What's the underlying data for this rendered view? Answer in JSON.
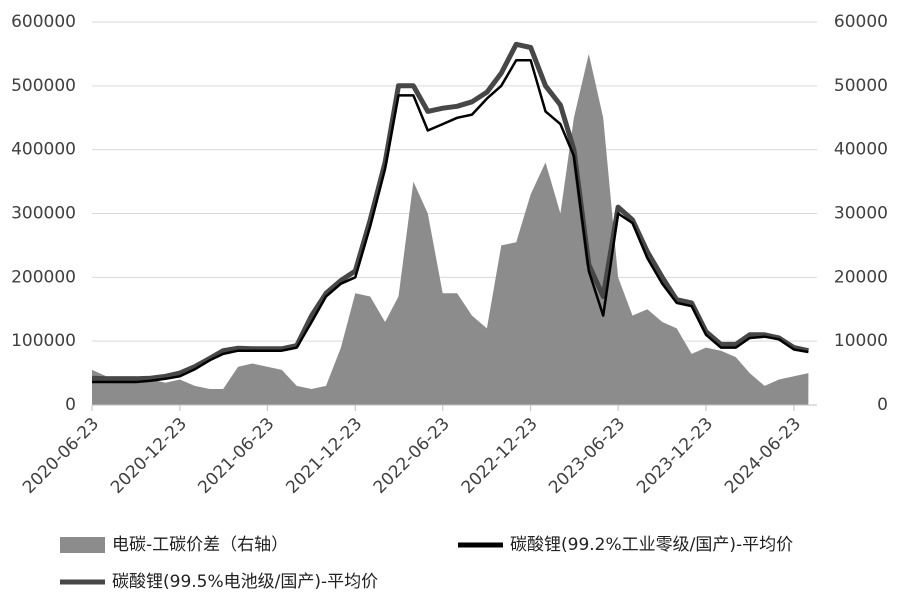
{
  "chart_data": {
    "type": "area-line",
    "x": [
      "2020-06-23",
      "2020-07-23",
      "2020-08-23",
      "2020-09-23",
      "2020-10-23",
      "2020-11-23",
      "2020-12-23",
      "2021-01-23",
      "2021-02-23",
      "2021-03-23",
      "2021-04-23",
      "2021-05-23",
      "2021-06-23",
      "2021-07-23",
      "2021-08-23",
      "2021-09-23",
      "2021-10-23",
      "2021-11-23",
      "2021-12-23",
      "2022-01-23",
      "2022-02-23",
      "2022-03-23",
      "2022-04-23",
      "2022-05-23",
      "2022-06-23",
      "2022-07-23",
      "2022-08-23",
      "2022-09-23",
      "2022-10-23",
      "2022-11-23",
      "2022-12-23",
      "2023-01-23",
      "2023-02-23",
      "2023-03-23",
      "2023-04-23",
      "2023-05-23",
      "2023-06-23",
      "2023-07-23",
      "2023-08-23",
      "2023-09-23",
      "2023-10-23",
      "2023-11-23",
      "2023-12-23",
      "2024-01-23",
      "2024-02-23",
      "2024-03-23",
      "2024-04-23",
      "2024-05-23",
      "2024-06-23",
      "2024-07-23"
    ],
    "series": [
      {
        "name": "电碳-工碳价差（右轴）",
        "color": "#8c8c8c",
        "kind": "area",
        "axis": "y2",
        "values": [
          5500,
          4500,
          4500,
          4500,
          4000,
          3500,
          4000,
          3000,
          2500,
          2500,
          6000,
          6500,
          6000,
          5500,
          3000,
          2500,
          3000,
          9000,
          17500,
          17000,
          13000,
          17000,
          35000,
          30000,
          17500,
          17500,
          14000,
          12000,
          25000,
          25500,
          33000,
          38000,
          30000,
          45000,
          55000,
          45000,
          20000,
          14000,
          15000,
          13000,
          12000,
          8000,
          9000,
          8500,
          7500,
          5000,
          3000,
          4000,
          4500,
          5000
        ]
      },
      {
        "name": "碳酸锂(99.5%电池级/国产)-平均价",
        "color": "#474747",
        "kind": "line",
        "values": [
          42000,
          41000,
          41000,
          41000,
          42000,
          45000,
          50000,
          60000,
          73000,
          85000,
          89000,
          88000,
          88000,
          88000,
          93000,
          140000,
          175000,
          195000,
          210000,
          290000,
          380000,
          500000,
          500000,
          460000,
          465000,
          468000,
          475000,
          490000,
          520000,
          565000,
          560000,
          500000,
          470000,
          400000,
          220000,
          170000,
          310000,
          290000,
          240000,
          200000,
          165000,
          160000,
          115000,
          95000,
          95000,
          110000,
          110000,
          105000,
          90000,
          85000
        ]
      },
      {
        "name": "碳酸锂(99.2%工业零级/国产)-平均价",
        "color": "#000000",
        "kind": "line",
        "values": [
          36000,
          36000,
          36000,
          36000,
          38000,
          41000,
          45000,
          56000,
          70000,
          80000,
          85000,
          85000,
          85000,
          85000,
          90000,
          130000,
          170000,
          190000,
          200000,
          280000,
          370000,
          485000,
          485000,
          430000,
          440000,
          450000,
          455000,
          480000,
          500000,
          540000,
          540000,
          460000,
          440000,
          390000,
          210000,
          140000,
          300000,
          285000,
          230000,
          190000,
          160000,
          155000,
          110000,
          90000,
          90000,
          105000,
          107000,
          103000,
          87000,
          83000
        ]
      }
    ],
    "xlim": [
      "2020-06-23",
      "2024-08-10"
    ],
    "xticks": [
      "2020-06-23",
      "2020-12-23",
      "2021-06-23",
      "2021-12-23",
      "2022-06-23",
      "2022-12-23",
      "2023-06-23",
      "2023-12-23",
      "2024-06-23"
    ],
    "ylim": [
      0,
      600000
    ],
    "yticks": [
      0,
      100000,
      200000,
      300000,
      400000,
      500000,
      600000
    ],
    "y2lim": [
      0,
      60000
    ],
    "y2ticks": [
      0,
      10000,
      20000,
      30000,
      40000,
      50000,
      60000
    ],
    "grid": true
  }
}
